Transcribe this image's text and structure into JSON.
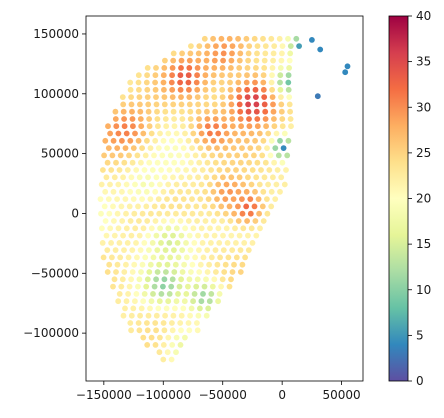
{
  "chart_data": {
    "type": "scatter",
    "title": "",
    "xlabel": "",
    "ylabel": "",
    "xlim": [
      -165000,
      68000
    ],
    "ylim": [
      -140000,
      165000
    ],
    "x_ticks": [
      -150000,
      -100000,
      -50000,
      0,
      50000
    ],
    "x_tick_labels": [
      "−150000",
      "−100000",
      "−50000",
      "0",
      "50000"
    ],
    "y_ticks": [
      -100000,
      -50000,
      0,
      50000,
      100000,
      150000
    ],
    "y_tick_labels": [
      "−100000",
      "−50000",
      "0",
      "50000",
      "100000",
      "150000"
    ],
    "grid": false,
    "legend": "none",
    "colormap": "Spectral_r",
    "colorbar": {
      "range": [
        0,
        40
      ],
      "ticks": [
        0,
        5,
        10,
        15,
        20,
        25,
        30,
        35,
        40
      ],
      "tick_labels": [
        "0",
        "5",
        "10",
        "15",
        "20",
        "25",
        "30",
        "35",
        "40"
      ]
    },
    "field": {
      "grid_spacing": 7000,
      "boundary_top_y": 152000,
      "boundary_bottom_y": -122000,
      "boundary_right_x": 13000,
      "boundary_right_edge_points": [
        [
          -90000,
          -122000
        ],
        [
          -40000,
          -60000
        ],
        [
          5000,
          25000
        ],
        [
          8000,
          80000
        ],
        [
          13000,
          135000
        ],
        [
          20000,
          152000
        ]
      ],
      "boundary_left_edge_points": [
        [
          -100000,
          -122000
        ],
        [
          -130000,
          -95000
        ],
        [
          -150000,
          -40000
        ],
        [
          -153000,
          10000
        ],
        [
          -148000,
          70000
        ],
        [
          -125000,
          115000
        ],
        [
          -80000,
          140000
        ],
        [
          -50000,
          152000
        ],
        [
          20000,
          152000
        ]
      ],
      "hotspots": [
        {
          "x": -25000,
          "y": 95000,
          "value": 38,
          "radius": 22000
        },
        {
          "x": -130000,
          "y": 70000,
          "value": 31,
          "radius": 22000
        },
        {
          "x": -80000,
          "y": 115000,
          "value": 32,
          "radius": 18000
        },
        {
          "x": -50000,
          "y": 130000,
          "value": 30,
          "radius": 20000
        },
        {
          "x": -30000,
          "y": 5000,
          "value": 37,
          "radius": 14000
        },
        {
          "x": -45000,
          "y": 15000,
          "value": 31,
          "radius": 16000
        },
        {
          "x": -60000,
          "y": 70000,
          "value": 31,
          "radius": 16000
        },
        {
          "x": 0,
          "y": 55000,
          "value": 4,
          "radius": 9000
        },
        {
          "x": 5000,
          "y": 110000,
          "value": 8,
          "radius": 12000
        },
        {
          "x": 15000,
          "y": 140000,
          "value": 6,
          "radius": 9000
        },
        {
          "x": -95000,
          "y": -20000,
          "value": 14,
          "radius": 18000
        },
        {
          "x": -100000,
          "y": -60000,
          "value": 13,
          "radius": 16000
        },
        {
          "x": -65000,
          "y": -70000,
          "value": 11,
          "radius": 14000
        },
        {
          "x": -85000,
          "y": -110000,
          "value": 15,
          "radius": 16000
        },
        {
          "x": -115000,
          "y": 20000,
          "value": 18,
          "radius": 16000
        }
      ],
      "baseline_value": 22
    },
    "outliers": [
      {
        "x": 53000,
        "y": 118000,
        "value": 4
      },
      {
        "x": 55000,
        "y": 123000,
        "value": 4
      },
      {
        "x": 30000,
        "y": 98000,
        "value": 3
      },
      {
        "x": 25000,
        "y": 145000,
        "value": 4
      },
      {
        "x": 32000,
        "y": 137000,
        "value": 4
      }
    ]
  }
}
